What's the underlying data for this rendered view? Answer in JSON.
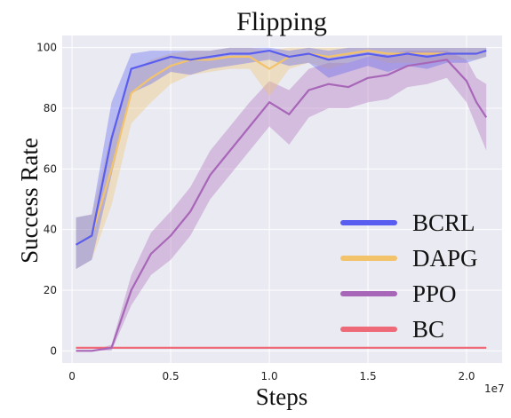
{
  "chart_data": {
    "type": "line",
    "title": "Flipping",
    "xlabel": "Steps",
    "ylabel": "Success Rate",
    "x_offset_label": "1e7",
    "xlim": [
      -0.05,
      2.18
    ],
    "ylim": [
      -4,
      104
    ],
    "x_ticks": [
      0,
      0.5,
      1.0,
      1.5,
      2.0
    ],
    "x_tick_labels": [
      "0",
      "0.5",
      "1.0",
      "1.5",
      "2.0"
    ],
    "y_ticks": [
      0,
      20,
      40,
      60,
      80,
      100
    ],
    "y_tick_labels": [
      "0",
      "20",
      "40",
      "60",
      "80",
      "100"
    ],
    "grid": true,
    "legend_position": "lower-right",
    "series": [
      {
        "name": "BCRL",
        "color": "#5a5ef0",
        "x": [
          0.02,
          0.1,
          0.2,
          0.3,
          0.4,
          0.5,
          0.6,
          0.7,
          0.8,
          0.9,
          1.0,
          1.1,
          1.2,
          1.3,
          1.4,
          1.5,
          1.6,
          1.7,
          1.8,
          1.9,
          2.0,
          2.05,
          2.1
        ],
        "y": [
          35,
          38,
          70,
          93,
          95,
          97,
          96,
          97,
          98,
          98,
          99,
          97,
          98,
          96,
          97,
          98,
          97,
          98,
          97,
          98,
          98,
          98,
          99
        ],
        "lower": [
          27,
          30,
          58,
          85,
          88,
          92,
          91,
          93,
          94,
          95,
          96,
          94,
          95,
          90,
          92,
          94,
          92,
          94,
          93,
          95,
          95,
          96,
          97
        ],
        "upper": [
          44,
          45,
          82,
          98,
          99,
          99,
          99,
          99,
          100,
          100,
          100,
          99,
          100,
          99,
          100,
          100,
          100,
          100,
          100,
          100,
          100,
          100,
          100
        ]
      },
      {
        "name": "DAPG",
        "color": "#f2c36b",
        "x": [
          0.02,
          0.1,
          0.2,
          0.3,
          0.4,
          0.5,
          0.6,
          0.7,
          0.8,
          0.9,
          1.0,
          1.1,
          1.2,
          1.3,
          1.4,
          1.5,
          1.6,
          1.7,
          1.8,
          1.9,
          2.0,
          2.05,
          2.1
        ],
        "y": [
          35,
          38,
          60,
          85,
          90,
          94,
          96,
          96,
          97,
          97,
          93,
          97,
          98,
          97,
          98,
          99,
          98,
          98,
          98,
          98,
          98,
          98,
          99
        ],
        "lower": [
          27,
          30,
          48,
          75,
          82,
          88,
          91,
          92,
          93,
          93,
          84,
          93,
          95,
          93,
          95,
          97,
          95,
          95,
          95,
          96,
          96,
          96,
          97
        ],
        "upper": [
          44,
          45,
          72,
          92,
          96,
          98,
          99,
          99,
          100,
          100,
          99,
          100,
          100,
          100,
          100,
          100,
          100,
          100,
          100,
          100,
          100,
          100,
          100
        ]
      },
      {
        "name": "PPO",
        "color": "#a866b8",
        "x": [
          0.02,
          0.1,
          0.2,
          0.3,
          0.4,
          0.5,
          0.6,
          0.7,
          0.8,
          0.9,
          1.0,
          1.1,
          1.2,
          1.3,
          1.4,
          1.5,
          1.6,
          1.7,
          1.8,
          1.9,
          2.0,
          2.05,
          2.1
        ],
        "y": [
          0,
          0,
          1,
          20,
          32,
          38,
          46,
          58,
          66,
          74,
          82,
          78,
          86,
          88,
          87,
          90,
          91,
          94,
          95,
          96,
          89,
          82,
          77
        ],
        "lower": [
          0,
          0,
          0,
          15,
          25,
          30,
          38,
          50,
          58,
          66,
          74,
          68,
          77,
          80,
          80,
          82,
          83,
          87,
          88,
          90,
          82,
          74,
          66
        ],
        "upper": [
          0,
          0,
          2,
          25,
          39,
          46,
          54,
          66,
          74,
          82,
          89,
          86,
          93,
          95,
          95,
          97,
          98,
          99,
          99,
          99,
          96,
          90,
          88
        ]
      },
      {
        "name": "BC",
        "color": "#ee6a78",
        "x": [
          0.02,
          2.1
        ],
        "y": [
          1,
          1
        ]
      }
    ]
  }
}
